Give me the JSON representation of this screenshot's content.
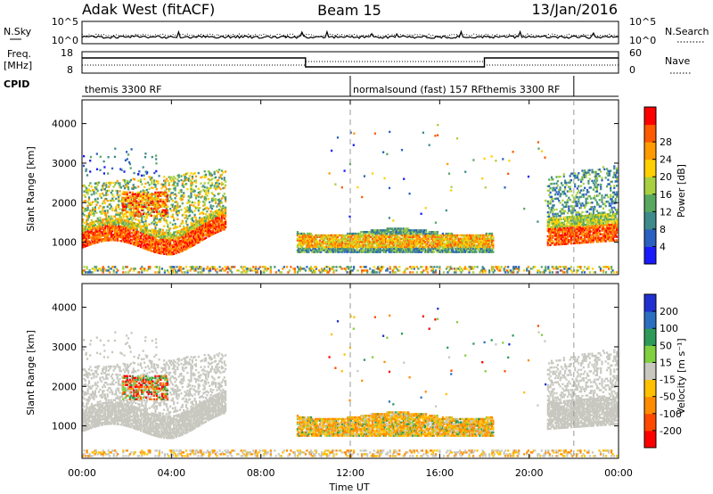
{
  "header": {
    "radar": "Adak West (fitACF)",
    "beam": "Beam 15",
    "date": "13/Jan/2016"
  },
  "strips": {
    "nsky_label": "N.Sky",
    "nsky_ticks": [
      "10^5",
      "10^0"
    ],
    "nsearch_label": "N.Search",
    "nsearch_ticks": [
      "10^5",
      "10^0"
    ],
    "freq_label": "Freq.",
    "freq_unit": "[MHz]",
    "freq_ticks": [
      "18",
      "8"
    ],
    "nave_label": "Nave",
    "nave_ticks": [
      "60",
      "0"
    ],
    "cpid_label": "CPID",
    "cpid_segments": [
      {
        "label": "themis 3300 RF",
        "start_h": 0,
        "end_h": 12
      },
      {
        "label": "normalsound (fast) 157 RF",
        "start_h": 12,
        "end_h": 22
      },
      {
        "label": "themis 3300 RF",
        "start_h": 22,
        "end_h": 24
      }
    ]
  },
  "axes": {
    "xlabel": "Time UT",
    "ylabel": "Slant Range [km]",
    "x_ticks": [
      "00:00",
      "04:00",
      "08:00",
      "12:00",
      "16:00",
      "20:00",
      "00:00"
    ],
    "y_ticks": [
      "1000",
      "2000",
      "3000",
      "4000"
    ]
  },
  "colorbars": {
    "power_label": "Power [dB]",
    "power_ticks": [
      "4",
      "8",
      "12",
      "16",
      "20",
      "24",
      "28"
    ],
    "velocity_label": "Velocity [m s⁻¹]",
    "velocity_ticks": [
      "200",
      "100",
      "50",
      "15",
      "-15",
      "-50",
      "-100",
      "-200"
    ]
  },
  "colors": {
    "power_scale": [
      "#1a1aff",
      "#2a60c0",
      "#3f8a8a",
      "#58a860",
      "#a8d040",
      "#ffd000",
      "#ff9a00",
      "#ff5a00",
      "#ff0000"
    ],
    "velocity_scale": [
      "#2030d0",
      "#2c6fc0",
      "#2e9a58",
      "#80d040",
      "#c8c8c0",
      "#ffc000",
      "#ff8c00",
      "#ff4a00",
      "#ff0000"
    ],
    "ground_scatter": "#c8c8c0"
  },
  "chart_data": {
    "type": "heatmap",
    "x_range_hours": [
      0,
      24
    ],
    "y_range_km": [
      180,
      4600
    ],
    "echo_regions": [
      {
        "start_h": 0.0,
        "end_h": 6.4,
        "range_km": [
          900,
          2700
        ],
        "power_db": 26,
        "velocity": "ground-scatter"
      },
      {
        "start_h": 2.0,
        "end_h": 3.6,
        "range_km": [
          1700,
          2300
        ],
        "power_db": 20,
        "velocity": "negative"
      },
      {
        "start_h": 9.6,
        "end_h": 18.4,
        "range_km": [
          750,
          1450
        ],
        "power_db": 18,
        "velocity": "-50"
      },
      {
        "start_h": 20.8,
        "end_h": 24.0,
        "range_km": [
          950,
          2900
        ],
        "power_db": 24,
        "velocity": "ground-scatter"
      }
    ]
  }
}
